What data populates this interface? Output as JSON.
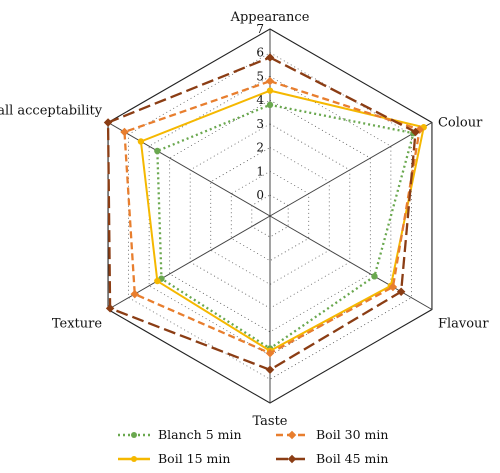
{
  "chart_data": {
    "type": "radar",
    "axes": [
      "Appearance",
      "Colour",
      "Flavour",
      "Taste",
      "Texture",
      "Overall acceptability"
    ],
    "r_ticks": [
      "0",
      "1",
      "2",
      "3",
      "4",
      "5",
      "6",
      "7"
    ],
    "rlim": [
      0,
      7
    ],
    "grid": true,
    "legend_position": "bottom",
    "series": [
      {
        "name": "Blanch 5 min",
        "values": [
          3.8,
          6.1,
          4.2,
          4.7,
          4.4,
          4.6
        ],
        "color": "#6aa84f",
        "line": "dotted"
      },
      {
        "name": "Boil 15 min",
        "values": [
          4.4,
          6.6,
          5.0,
          4.8,
          4.6,
          5.4
        ],
        "color": "#f5b800",
        "line": "solid"
      },
      {
        "name": "Boil 30 min",
        "values": [
          4.8,
          6.4,
          5.1,
          4.9,
          5.7,
          6.2
        ],
        "color": "#e87e2e",
        "line": "dashed"
      },
      {
        "name": "Boil 45 min",
        "values": [
          5.8,
          6.2,
          5.5,
          5.6,
          6.9,
          7.0
        ],
        "color": "#8b3d14",
        "line": "longdash"
      }
    ]
  }
}
